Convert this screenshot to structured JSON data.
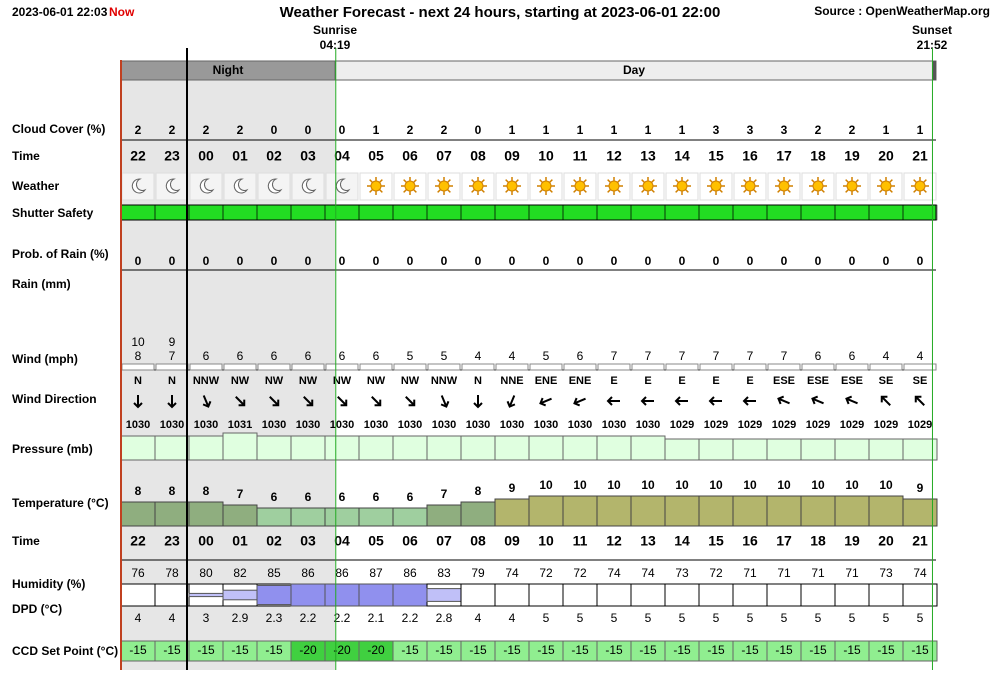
{
  "header": {
    "now_time": "2023-06-01 22:03",
    "now": "Now",
    "title": "Weather Forecast - next 24 hours, starting at 2023-06-01 22:00",
    "source": "Source : OpenWeatherMap.org",
    "sunrise_label": "Sunrise",
    "sunrise": "04:19",
    "sunset_label": "Sunset",
    "sunset": "21:52",
    "night": "Night",
    "day": "Day"
  },
  "labels": {
    "cloud": "Cloud Cover (%)",
    "time": "Time",
    "weather": "Weather",
    "shutter": "Shutter Safety",
    "rain_prob": "Prob. of Rain (%)",
    "rain": "Rain (mm)",
    "wind": "Wind (mph)",
    "wind_dir": "Wind Direction",
    "pressure": "Pressure (mb)",
    "temperature": "Temperature (°C)",
    "time2": "Time",
    "humidity": "Humidity (%)",
    "dpd": "DPD (°C)",
    "ccd": "CCD Set Point (°C)"
  },
  "forecast": {
    "hours": [
      "22",
      "23",
      "00",
      "01",
      "02",
      "03",
      "04",
      "05",
      "06",
      "07",
      "08",
      "09",
      "10",
      "11",
      "12",
      "13",
      "14",
      "15",
      "16",
      "17",
      "18",
      "19",
      "20",
      "21"
    ],
    "cloud_cover": [
      2,
      2,
      2,
      2,
      0,
      0,
      0,
      1,
      2,
      2,
      0,
      1,
      1,
      1,
      1,
      1,
      1,
      3,
      3,
      3,
      2,
      2,
      1,
      1
    ],
    "rain_prob": [
      0,
      0,
      0,
      0,
      0,
      0,
      0,
      0,
      0,
      0,
      0,
      0,
      0,
      0,
      0,
      0,
      0,
      0,
      0,
      0,
      0,
      0,
      0,
      0
    ],
    "gust": [
      10,
      9,
      null,
      null,
      null,
      null,
      null,
      null,
      null,
      null,
      null,
      null,
      null,
      null,
      null,
      null,
      null,
      null,
      null,
      null,
      null,
      null,
      null,
      null
    ],
    "wind": [
      8,
      7,
      6,
      6,
      6,
      6,
      6,
      6,
      5,
      5,
      4,
      4,
      5,
      6,
      7,
      7,
      7,
      7,
      7,
      7,
      6,
      6,
      4,
      4
    ],
    "wind_dir": [
      "N",
      "N",
      "NNW",
      "NW",
      "NW",
      "NW",
      "NW",
      "NW",
      "NW",
      "NNW",
      "N",
      "NNE",
      "ENE",
      "ENE",
      "E",
      "E",
      "E",
      "E",
      "E",
      "ESE",
      "ESE",
      "ESE",
      "SE",
      "SE"
    ],
    "pressure": [
      1030,
      1030,
      1030,
      1031,
      1030,
      1030,
      1030,
      1030,
      1030,
      1030,
      1030,
      1030,
      1030,
      1030,
      1030,
      1030,
      1029,
      1029,
      1029,
      1029,
      1029,
      1029,
      1029,
      1029
    ],
    "temperature": [
      8,
      8,
      8,
      7,
      6,
      6,
      6,
      6,
      6,
      7,
      8,
      9,
      10,
      10,
      10,
      10,
      10,
      10,
      10,
      10,
      10,
      10,
      10,
      9
    ],
    "humidity": [
      76,
      78,
      80,
      82,
      85,
      86,
      86,
      87,
      86,
      83,
      79,
      74,
      72,
      72,
      74,
      74,
      73,
      72,
      71,
      71,
      71,
      71,
      73,
      74
    ],
    "dpd": [
      4,
      4,
      3,
      2.9,
      2.3,
      2.2,
      2.2,
      2.1,
      2.2,
      2.8,
      4,
      4,
      5,
      5,
      5,
      5,
      5,
      5,
      5,
      5,
      5,
      5,
      5,
      5
    ],
    "ccd": [
      -15,
      -15,
      -15,
      -15,
      -15,
      -20,
      -20,
      -20,
      -15,
      -15,
      -15,
      -15,
      -15,
      -15,
      -15,
      -15,
      -15,
      -15,
      -15,
      -15,
      -15,
      -15,
      -15,
      -15
    ]
  }
}
